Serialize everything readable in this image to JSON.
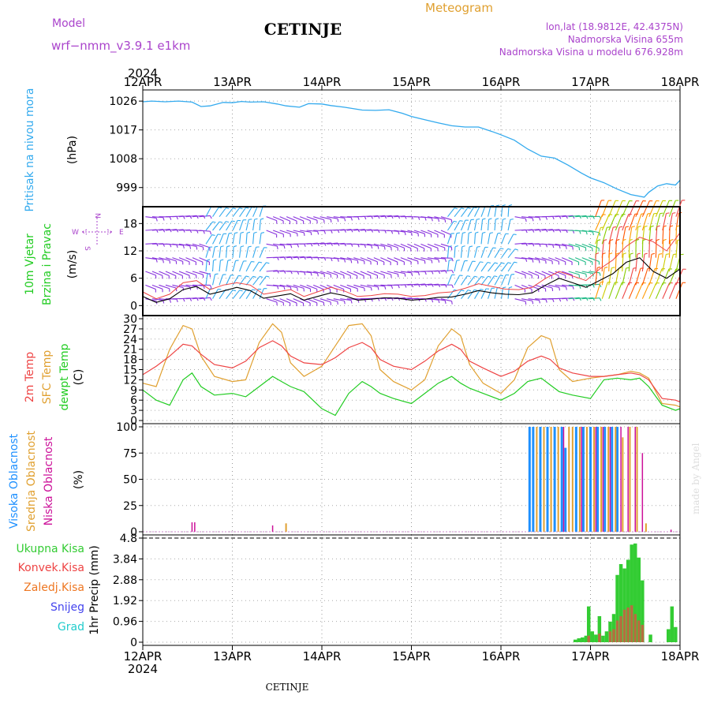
{
  "header": {
    "model_label": "Model",
    "model_name": "wrf−nmm_v3.9.1  e1km",
    "title": "CETINJE",
    "meteogram_label": "Meteogram",
    "coords": "lon,lat (18.9812E, 42.4375N)",
    "elevation": "Nadmorska Visina 655m",
    "model_elevation": "Nadmorska Visina u modelu 676.928m",
    "year_top": "2024",
    "year_bottom": "2024",
    "footer_station": "CETINJE",
    "watermark": "made by Angel"
  },
  "colors": {
    "pressure": "#33aaee",
    "temp2m": "#ee4444",
    "sfc_temp": "#e0a030",
    "dewpoint": "#22cc22",
    "high_cloud": "#1e90ff",
    "mid_cloud": "#e0a030",
    "low_cloud": "#cc1199",
    "total_precip": "#33cc33",
    "conv_precip": "#ee4444",
    "frz_precip": "#ee7722",
    "snow": "#4444ee",
    "hail": "#22cccc",
    "model_label": "#aa44cc",
    "meteogram": "#e0a030",
    "wind_label": "#22cc22"
  },
  "chart_data": [
    {
      "type": "line",
      "panel": "pressure",
      "ylabel_main": "Pritisak na nivou mora",
      "ylabel_unit": "(hPa)",
      "x_categories": [
        "12APR",
        "13APR",
        "14APR",
        "15APR",
        "16APR",
        "17APR",
        "18APR"
      ],
      "yticks": [
        999,
        1008,
        1017,
        1026
      ],
      "ylim": [
        994,
        1028.5
      ],
      "series": [
        {
          "x": [
            0,
            0.1,
            0.25,
            0.4,
            0.55,
            0.65,
            0.75,
            0.9,
            1.0,
            1.1,
            1.2,
            1.35,
            1.5,
            1.6,
            1.75,
            1.85,
            2.0,
            2.1,
            2.25,
            2.45,
            2.6,
            2.75,
            2.9,
            3.0,
            3.15,
            3.3,
            3.45,
            3.6,
            3.75,
            3.9,
            4.0,
            4.15,
            4.3,
            4.45,
            4.6,
            4.75,
            4.9,
            5.0,
            5.15,
            5.3,
            5.45,
            5.6,
            5.65,
            5.75,
            5.85,
            5.95,
            6.0
          ],
          "values": [
            1025.8,
            1026.0,
            1025.8,
            1026.0,
            1025.7,
            1024.3,
            1024.5,
            1025.6,
            1025.5,
            1025.9,
            1025.7,
            1025.8,
            1025.1,
            1024.5,
            1024.1,
            1025.2,
            1025.1,
            1024.6,
            1024.1,
            1023.2,
            1023.1,
            1023.3,
            1022.2,
            1021.2,
            1020.2,
            1019.2,
            1018.3,
            1017.9,
            1017.9,
            1016.5,
            1015.5,
            1013.8,
            1011.0,
            1008.8,
            1008.2,
            1006.0,
            1003.5,
            1002.0,
            1000.5,
            998.5,
            996.8,
            996.0,
            997.5,
            999.5,
            1000.2,
            999.8,
            1001.3
          ]
        }
      ]
    },
    {
      "type": "line",
      "panel": "wind",
      "ylabel_main": "10m Vjetar",
      "ylabel_sub": "Brzina i Pravac",
      "ylabel_unit": "(m/s)",
      "compass": {
        "n": "N",
        "w": "W",
        "e": "E",
        "s": "S"
      },
      "yticks": [
        0,
        6,
        12,
        18
      ],
      "ylim": [
        -1.5,
        21
      ],
      "series": [
        {
          "name": "speed",
          "x": [
            0,
            0.15,
            0.3,
            0.45,
            0.6,
            0.75,
            0.9,
            1.05,
            1.2,
            1.35,
            1.5,
            1.65,
            1.8,
            1.95,
            2.1,
            2.25,
            2.4,
            2.55,
            2.7,
            2.85,
            3.0,
            3.15,
            3.3,
            3.45,
            3.6,
            3.75,
            3.9,
            4.05,
            4.2,
            4.35,
            4.5,
            4.65,
            4.8,
            4.95,
            5.1,
            5.25,
            5.4,
            5.55,
            5.7,
            5.85,
            6.0
          ],
          "values": [
            2.0,
            0.7,
            1.5,
            3.5,
            4.2,
            2.5,
            3.2,
            4.0,
            3.3,
            1.6,
            2.1,
            2.6,
            1.2,
            2.0,
            2.8,
            2.2,
            1.2,
            1.4,
            1.7,
            1.6,
            1.2,
            1.4,
            1.8,
            1.9,
            2.5,
            3.3,
            2.8,
            2.5,
            2.4,
            2.8,
            4.5,
            6.0,
            5.0,
            4.0,
            5.5,
            7.0,
            9.5,
            10.5,
            7.5,
            6.0,
            8.0
          ]
        },
        {
          "name": "gust",
          "x": [
            0,
            0.15,
            0.3,
            0.45,
            0.6,
            0.75,
            0.9,
            1.05,
            1.2,
            1.35,
            1.5,
            1.65,
            1.8,
            1.95,
            2.1,
            2.25,
            2.4,
            2.55,
            2.7,
            2.85,
            3.0,
            3.15,
            3.3,
            3.45,
            3.6,
            3.75,
            3.9,
            4.05,
            4.2,
            4.35,
            4.5,
            4.65,
            4.8,
            4.95,
            5.1,
            5.25,
            5.4,
            5.55,
            5.7,
            5.85,
            6.0
          ],
          "values": [
            3.0,
            1.5,
            2.5,
            5.0,
            5.5,
            3.5,
            4.5,
            5.0,
            4.5,
            2.5,
            3.0,
            3.5,
            2.0,
            3.0,
            4.0,
            3.2,
            2.0,
            2.2,
            2.6,
            2.5,
            2.0,
            2.2,
            2.8,
            3.0,
            3.8,
            4.8,
            4.2,
            3.6,
            3.5,
            4.0,
            6.0,
            7.5,
            6.5,
            5.5,
            8.0,
            10.0,
            13.0,
            15.0,
            14.0,
            12.0,
            16.0
          ]
        }
      ],
      "barb_colors": [
        {
          "x0": 0.0,
          "x1": 0.7,
          "color": "#8833dd"
        },
        {
          "x0": 0.7,
          "x1": 1.35,
          "color": "#33aaee"
        },
        {
          "x0": 1.35,
          "x1": 2.0,
          "color": "#8833dd"
        },
        {
          "x0": 2.0,
          "x1": 3.4,
          "color": "#8833dd"
        },
        {
          "x0": 3.4,
          "x1": 4.1,
          "color": "#33aaee"
        },
        {
          "x0": 4.1,
          "x1": 4.75,
          "color": "#8833dd"
        },
        {
          "x0": 4.75,
          "x1": 5.05,
          "color": "#22bb88"
        },
        {
          "x0": 5.05,
          "x1": 6.0,
          "color": "#ddaa22"
        }
      ]
    },
    {
      "type": "line",
      "panel": "temperature",
      "ylabel_main": "2m Temp",
      "ylabel_sub": "SFC Temp",
      "ylabel_sub2": "dewpt Temp",
      "ylabel_unit": "(C)",
      "yticks": [
        0,
        3,
        6,
        9,
        12,
        15,
        18,
        21,
        24,
        27,
        30
      ],
      "ylim": [
        0,
        30
      ],
      "x": [
        0,
        0.15,
        0.3,
        0.45,
        0.55,
        0.65,
        0.8,
        1.0,
        1.15,
        1.3,
        1.45,
        1.55,
        1.65,
        1.8,
        2.0,
        2.15,
        2.3,
        2.45,
        2.55,
        2.65,
        2.8,
        3.0,
        3.15,
        3.3,
        3.45,
        3.55,
        3.65,
        3.8,
        4.0,
        4.15,
        4.3,
        4.45,
        4.55,
        4.65,
        4.8,
        5.0,
        5.15,
        5.3,
        5.45,
        5.55,
        5.65,
        5.8,
        5.95,
        6.0
      ],
      "series": [
        {
          "name": "2m Temp",
          "values": [
            13.5,
            16.0,
            19.0,
            22.5,
            22.0,
            19.5,
            16.5,
            15.5,
            17.5,
            21.5,
            23.5,
            22.0,
            19.0,
            17.0,
            16.5,
            18.5,
            21.5,
            23.0,
            21.5,
            18.0,
            16.0,
            15.0,
            17.5,
            20.5,
            22.5,
            21.0,
            17.5,
            15.5,
            13.0,
            14.5,
            17.5,
            19.0,
            18.0,
            15.5,
            14.0,
            13.0,
            13.0,
            13.5,
            14.0,
            13.5,
            12.0,
            6.5,
            6.0,
            5.5
          ]
        },
        {
          "name": "SFC Temp",
          "values": [
            11.0,
            10.0,
            21.0,
            28.0,
            27.0,
            19.0,
            13.0,
            11.5,
            12.0,
            23.0,
            28.5,
            26.0,
            17.0,
            13.0,
            16.0,
            22.0,
            28.0,
            28.5,
            25.0,
            15.0,
            11.5,
            9.0,
            12.0,
            22.0,
            27.0,
            25.0,
            16.5,
            11.0,
            8.0,
            12.0,
            21.5,
            25.0,
            24.0,
            15.0,
            11.5,
            12.5,
            13.0,
            13.5,
            14.5,
            14.0,
            12.5,
            5.0,
            4.5,
            4.0
          ]
        },
        {
          "name": "dewpt Temp",
          "values": [
            9.0,
            6.0,
            4.5,
            12.0,
            14.0,
            10.0,
            7.5,
            8.0,
            7.0,
            10.0,
            13.0,
            11.5,
            10.0,
            8.5,
            3.5,
            1.5,
            8.0,
            11.5,
            10.0,
            8.0,
            6.5,
            5.0,
            8.0,
            11.0,
            13.0,
            11.0,
            9.5,
            8.0,
            6.0,
            8.0,
            11.5,
            12.5,
            10.5,
            8.5,
            7.5,
            6.5,
            12.0,
            12.5,
            12.0,
            12.5,
            10.0,
            4.5,
            3.0,
            3.5
          ]
        }
      ]
    },
    {
      "type": "bar",
      "panel": "clouds",
      "ylabel_main": "Visoka Oblacnost",
      "ylabel_sub": "Srednja Oblacnost",
      "ylabel_sub2": "Niska Oblacnost",
      "ylabel_unit": "(%)",
      "yticks": [
        0,
        25,
        50,
        75,
        100
      ],
      "ylim": [
        0,
        100
      ],
      "series": [
        {
          "name": "Visoka Oblacnost",
          "x": [
            4.32,
            4.36,
            4.44,
            4.52,
            4.6,
            4.68,
            4.72,
            4.84,
            4.92,
            5.0,
            5.08,
            5.16,
            5.24,
            5.3
          ],
          "values": [
            100,
            100,
            100,
            100,
            100,
            100,
            80,
            100,
            100,
            100,
            100,
            100,
            100,
            100
          ]
        },
        {
          "name": "Srednja Oblacnost",
          "x": [
            1.6,
            4.4,
            4.48,
            4.56,
            4.64,
            4.76,
            4.8,
            4.88,
            4.96,
            5.04,
            5.12,
            5.2,
            5.28,
            5.36,
            5.44,
            5.52,
            5.62
          ],
          "values": [
            8,
            100,
            100,
            100,
            100,
            100,
            100,
            100,
            100,
            100,
            100,
            100,
            100,
            90,
            100,
            100,
            8
          ]
        },
        {
          "name": "Niska Oblacnost",
          "x": [
            0.55,
            0.58,
            1.45,
            4.7,
            4.9,
            5.06,
            5.14,
            5.22,
            5.34,
            5.42,
            5.5,
            5.58,
            5.9
          ],
          "values": [
            9,
            9,
            6,
            100,
            100,
            100,
            100,
            100,
            100,
            100,
            100,
            75,
            2
          ]
        }
      ]
    },
    {
      "type": "bar",
      "panel": "precipitation",
      "ylabel_unit_label": "1hr Precip (mm)",
      "legend": [
        "Ukupna Kisa",
        "Konvek.Kisa",
        "Zaledj.Kisa",
        "Snijeg",
        "Grad"
      ],
      "yticks": [
        0,
        0.96,
        1.92,
        2.88,
        3.84,
        4.8
      ],
      "ylim": [
        0,
        4.8
      ],
      "x_categories": [
        "12APR",
        "13APR",
        "14APR",
        "15APR",
        "16APR",
        "17APR",
        "18APR"
      ],
      "series": [
        {
          "name": "Ukupna Kisa",
          "x": [
            4.83,
            4.87,
            4.91,
            4.95,
            4.98,
            5.02,
            5.06,
            5.1,
            5.14,
            5.18,
            5.22,
            5.26,
            5.3,
            5.34,
            5.38,
            5.42,
            5.46,
            5.5,
            5.54,
            5.58,
            5.67,
            5.87,
            5.91,
            5.95
          ],
          "values": [
            0.12,
            0.18,
            0.22,
            0.3,
            1.65,
            0.5,
            0.35,
            1.2,
            0.3,
            0.5,
            0.95,
            1.3,
            3.1,
            3.6,
            3.4,
            3.8,
            4.5,
            4.55,
            3.9,
            2.85,
            0.35,
            0.6,
            1.65,
            0.7
          ]
        },
        {
          "name": "Konvek.Kisa",
          "x": [
            4.98,
            5.1,
            5.22,
            5.26,
            5.3,
            5.34,
            5.38,
            5.42,
            5.46,
            5.5,
            5.54,
            5.58
          ],
          "values": [
            0.3,
            0.4,
            0.5,
            0.6,
            1.0,
            1.2,
            1.5,
            1.6,
            1.7,
            1.3,
            1.0,
            0.8
          ]
        },
        {
          "name": "Zaledj.Kisa",
          "x": [],
          "values": []
        },
        {
          "name": "Snijeg",
          "x": [],
          "values": []
        },
        {
          "name": "Grad",
          "x": [],
          "values": []
        }
      ]
    }
  ]
}
